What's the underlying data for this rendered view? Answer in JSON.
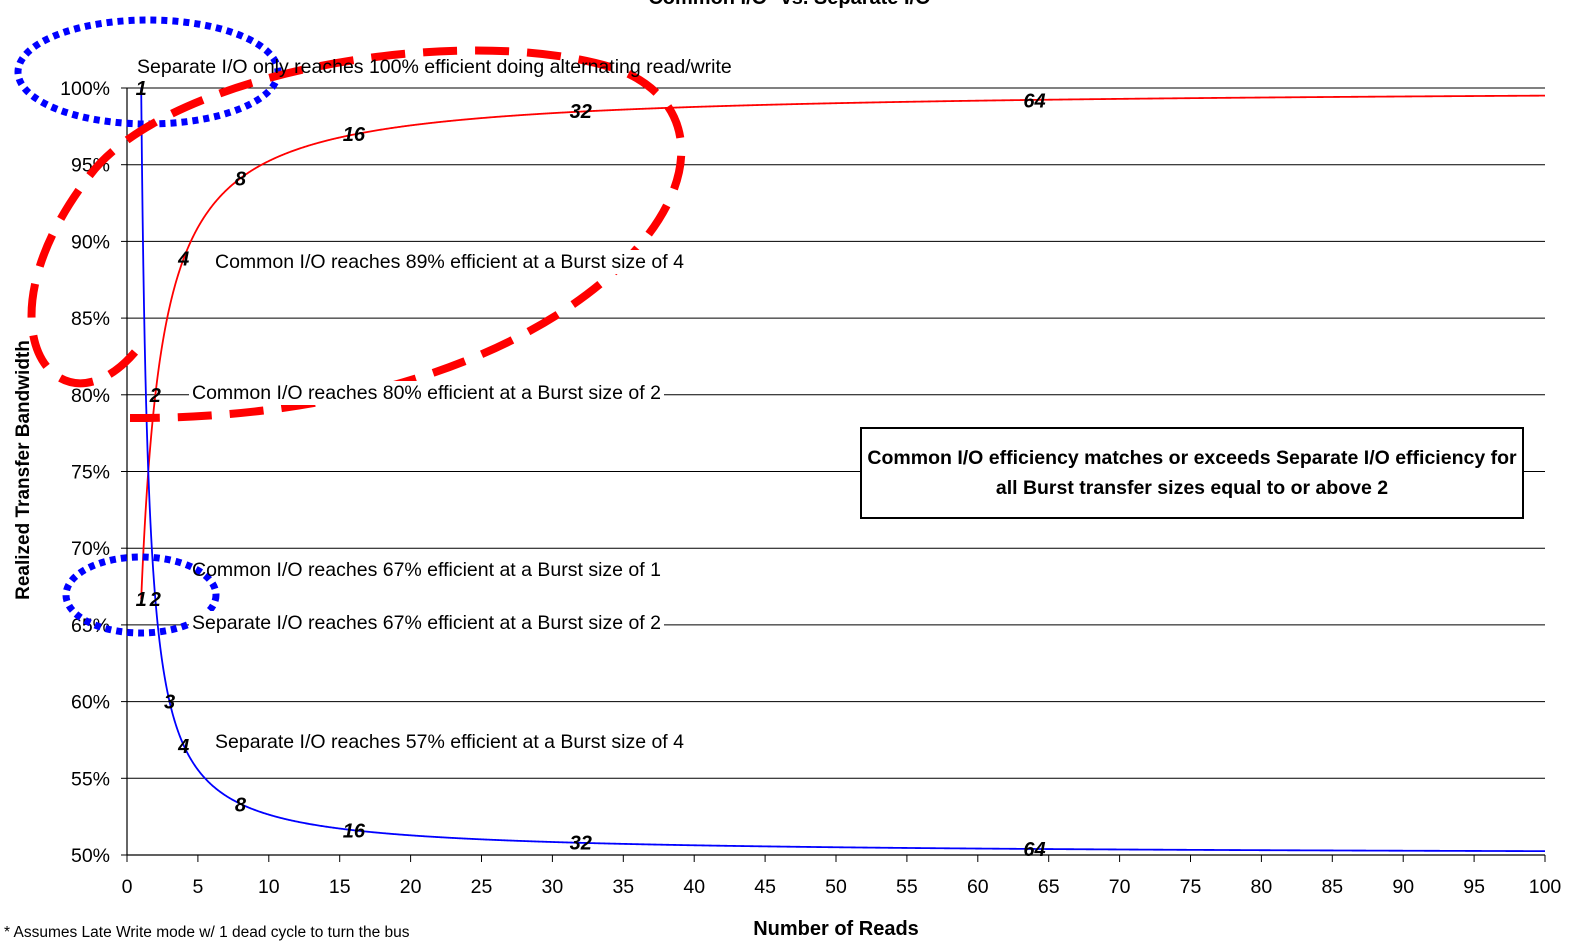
{
  "chart_data": {
    "type": "line",
    "title": "Common I/O* vs. Separate I/O",
    "xlabel": "Number of Reads",
    "ylabel": "Realized Transfer Bandwidth",
    "xlim": [
      0,
      100
    ],
    "ylim": [
      0.5,
      1.0
    ],
    "x_ticks": [
      0,
      5,
      10,
      15,
      20,
      25,
      30,
      35,
      40,
      45,
      50,
      55,
      60,
      65,
      70,
      75,
      80,
      85,
      90,
      95,
      100
    ],
    "x_tick_labels": [
      "0",
      "5",
      "10",
      "15",
      "20",
      "25",
      "30",
      "35",
      "40",
      "45",
      "50",
      "55",
      "60",
      "65",
      "70",
      "75",
      "80",
      "85",
      "90",
      "95",
      "100"
    ],
    "y_ticks": [
      0.5,
      0.55,
      0.6,
      0.65,
      0.7,
      0.75,
      0.8,
      0.85,
      0.9,
      0.95,
      1.0
    ],
    "y_tick_labels": [
      "50%",
      "55%",
      "60%",
      "65%",
      "70%",
      "75%",
      "80%",
      "85%",
      "90%",
      "95%",
      "100%"
    ],
    "grid": "horizontal",
    "series": [
      {
        "color": "#ff0000",
        "formula_points": "n/(n+0.5)",
        "labeled_points": [
          {
            "x": 1,
            "y": 0.667,
            "label": "1"
          },
          {
            "x": 2,
            "y": 0.8,
            "label": "2"
          },
          {
            "x": 4,
            "y": 0.889,
            "label": "4"
          },
          {
            "x": 8,
            "y": 0.941,
            "label": "8"
          },
          {
            "x": 16,
            "y": 0.97,
            "label": "16"
          },
          {
            "x": 32,
            "y": 0.985,
            "label": "32"
          },
          {
            "x": 64,
            "y": 0.992,
            "label": "64"
          }
        ]
      },
      {
        "color": "#0000ff",
        "labeled_points": [
          {
            "x": 1,
            "y": 1.0,
            "label": "1"
          },
          {
            "x": 2,
            "y": 0.667,
            "label": "2"
          },
          {
            "x": 3,
            "y": 0.6,
            "label": "3"
          },
          {
            "x": 4,
            "y": 0.571,
            "label": "4"
          },
          {
            "x": 8,
            "y": 0.533,
            "label": "8"
          },
          {
            "x": 16,
            "y": 0.516,
            "label": "16"
          },
          {
            "x": 32,
            "y": 0.508,
            "label": "32"
          },
          {
            "x": 64,
            "y": 0.504,
            "label": "64"
          }
        ]
      }
    ],
    "annotations": [
      "Separate I/O only reaches 100% efficient doing alternating read/write",
      "Common I/O reaches 89% efficient at a Burst size of 4",
      "Common I/O reaches 80% efficient at a Burst size of 2",
      "Common I/O reaches 67% efficient at a Burst size of 1",
      "Separate I/O reaches 67% efficient at a Burst size of 2",
      "Separate I/O reaches 57% efficient at a Burst size of 4"
    ],
    "callout": "Common I/O efficiency matches or exceeds Separate I/O efficiency for all Burst transfer sizes equal to or above 2",
    "footnote": "* Assumes Late Write mode w/ 1 dead cycle to turn the bus",
    "highlight_colors": {
      "red": "#ff0000",
      "blue": "#0000ff"
    }
  }
}
